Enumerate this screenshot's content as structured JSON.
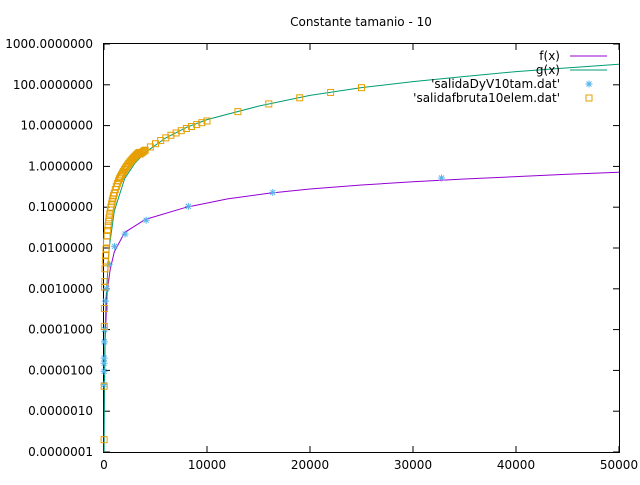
{
  "chart_data": {
    "type": "scatter",
    "title": "Constante tamanio - 10",
    "xlabel": "",
    "ylabel": "",
    "xlim": [
      0,
      50000
    ],
    "ylim": [
      1e-07,
      1000
    ],
    "y_scale": "log",
    "grid": false,
    "legend_position": "top-right",
    "x_ticks": [
      0,
      10000,
      20000,
      30000,
      40000,
      50000
    ],
    "x_tick_labels": [
      "0",
      "10000",
      "20000",
      "30000",
      "40000",
      "50000"
    ],
    "y_ticks": [
      1e-07,
      1e-06,
      1e-05,
      0.0001,
      0.001,
      0.01,
      0.1,
      1,
      10,
      100,
      1000
    ],
    "y_tick_labels": [
      "0.0000001",
      "0.0000010",
      "0.0000100",
      "0.0001000",
      "0.0010000",
      "0.0100000",
      "0.1000000",
      "1.0000000",
      "10.0000000",
      "100.0000000",
      "1000.0000000"
    ],
    "series": [
      {
        "name": "f(x)",
        "kind": "line",
        "color": "#9400d3",
        "x": [
          20,
          100,
          300,
          600,
          1000,
          2000,
          4000,
          8000,
          12000,
          16000,
          20000,
          25000,
          30000,
          35000,
          40000,
          45000,
          50000
        ],
        "y": [
          1e-06,
          5e-05,
          0.0008,
          0.003,
          0.008,
          0.024,
          0.05,
          0.1,
          0.16,
          0.22,
          0.28,
          0.35,
          0.42,
          0.49,
          0.56,
          0.64,
          0.72
        ]
      },
      {
        "name": "g(x)",
        "kind": "line",
        "color": "#009e73",
        "x": [
          10,
          50,
          100,
          200,
          500,
          1000,
          2000,
          3000,
          4000,
          6000,
          8000,
          10000,
          15000,
          20000,
          25000,
          30000,
          35000,
          40000,
          45000,
          50000
        ],
        "y": [
          1e-07,
          1e-05,
          8e-05,
          0.0006,
          0.01,
          0.08,
          0.5,
          1.2,
          2.2,
          5,
          9,
          14,
          30,
          55,
          85,
          120,
          160,
          210,
          260,
          320
        ]
      },
      {
        "name": "'salidaDyV10tam.dat'",
        "kind": "points",
        "marker": "star",
        "color": "#56b4e9",
        "x": [
          2,
          4,
          8,
          16,
          32,
          64,
          128,
          256,
          512,
          1024,
          2048,
          4096,
          8192,
          16384,
          32768
        ],
        "y": [
          4.5e-06,
          1.5e-05,
          9.5e-06,
          2e-05,
          5e-05,
          0.0001,
          0.0005,
          0.001,
          0.004,
          0.011,
          0.022,
          0.048,
          0.105,
          0.23,
          0.52
        ]
      },
      {
        "name": "'salidafbruta10elem.dat'",
        "kind": "points",
        "marker": "square",
        "color": "#e69f00",
        "x": [
          10,
          20,
          30,
          40,
          60,
          80,
          100,
          130,
          160,
          200,
          250,
          300,
          350,
          400,
          450,
          500,
          560,
          620,
          680,
          740,
          800,
          860,
          920,
          1000,
          1100,
          1200,
          1300,
          1400,
          1500,
          1600,
          1700,
          1800,
          1900,
          2000,
          2100,
          2200,
          2300,
          2400,
          2500,
          2600,
          2700,
          2800,
          2900,
          3000,
          3100,
          3200,
          3300,
          3400,
          3500,
          3600,
          3700,
          3800,
          3900,
          4000,
          4500,
          5000,
          5500,
          6000,
          6500,
          7000,
          7500,
          8000,
          8500,
          9000,
          9500,
          10000,
          13000,
          16000,
          19000,
          22000,
          25000
        ],
        "y": [
          2e-07,
          4.1e-06,
          0.00012,
          0.00033,
          0.0011,
          0.0015,
          0.0031,
          0.0048,
          0.0065,
          0.0095,
          0.014,
          0.02,
          0.027,
          0.035,
          0.045,
          0.055,
          0.068,
          0.085,
          0.1,
          0.12,
          0.14,
          0.16,
          0.19,
          0.22,
          0.27,
          0.32,
          0.38,
          0.44,
          0.5,
          0.56,
          0.62,
          0.69,
          0.76,
          0.84,
          0.92,
          1.0,
          1.09,
          1.18,
          1.27,
          1.36,
          1.45,
          1.55,
          1.65,
          1.75,
          1.86,
          1.97,
          2.08,
          2.2,
          2.0,
          2.1,
          2.2,
          2.3,
          2.4,
          2.5,
          3.0,
          3.6,
          4.3,
          5.0,
          5.8,
          6.6,
          7.5,
          8.5,
          9.5,
          10.6,
          11.8,
          13.0,
          22.0,
          34.0,
          48.0,
          65.0,
          85.0
        ]
      }
    ]
  }
}
